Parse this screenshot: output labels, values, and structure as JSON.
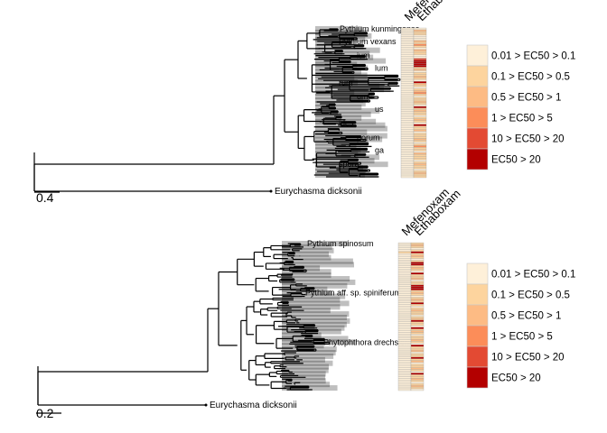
{
  "chart_data": [
    {
      "type": "heatmap",
      "description_free": true,
      "panel": "top",
      "columns": [
        "Mefenoxam",
        "Ethaboxam"
      ],
      "scale_bar_label": "0.4",
      "outgroup_label": "Eurychasma dicksonii",
      "top_tip_label": "Pythium kunmingense",
      "side_labels": [
        "Pythium vexans",
        "ium",
        "lum",
        "rum",
        "um",
        "us",
        "ides",
        "porum",
        "ga",
        "spora"
      ],
      "tip_count": 84,
      "legend": {
        "labels": [
          "0.01 > EC50 > 0.1",
          "0.1 > EC50 > 0.5",
          "0.5 > EC50 > 1",
          "1 > EC50 > 5",
          "10 > EC50 > 20",
          "EC50 > 20"
        ],
        "colors": [
          "#FEF0D9",
          "#FDD49E",
          "#FDBB84",
          "#FC8D59",
          "#E34A33",
          "#B30000"
        ]
      },
      "cell_classes": {
        "Mefenoxam": [
          0,
          0,
          0,
          0,
          0,
          0,
          0,
          0,
          0,
          0,
          0,
          0,
          0,
          0,
          0,
          0,
          0,
          0,
          0,
          0,
          0,
          0,
          0,
          0,
          0,
          0,
          0,
          0,
          0,
          0,
          0,
          0,
          0,
          0,
          0,
          0,
          0,
          0,
          0,
          0,
          0,
          0,
          0,
          0,
          0,
          0,
          0,
          0,
          0,
          0,
          0,
          0,
          0,
          0,
          0,
          0,
          0,
          0,
          0,
          0,
          0,
          0,
          0,
          0,
          0,
          0,
          0,
          0,
          0,
          0,
          0,
          0,
          0,
          0,
          0,
          0,
          0,
          0,
          0,
          0,
          0,
          0,
          0,
          0
        ],
        "Ethaboxam": [
          0,
          2,
          1,
          1,
          0,
          0,
          0,
          2,
          1,
          3,
          1,
          0,
          2,
          1,
          1,
          0,
          0,
          4,
          5,
          5,
          5,
          5,
          1,
          2,
          0,
          1,
          1,
          2,
          1,
          0,
          5,
          2,
          1,
          0,
          1,
          2,
          3,
          1,
          0,
          1,
          1,
          2,
          1,
          0,
          5,
          1,
          2,
          1,
          1,
          0,
          1,
          2,
          1,
          0,
          5,
          1,
          1,
          2,
          0,
          1,
          1,
          1,
          2,
          1,
          0,
          1,
          3,
          1,
          1,
          0,
          2,
          1,
          1,
          1,
          0,
          1,
          2,
          1,
          1,
          0,
          1,
          2,
          1,
          1
        ]
      }
    },
    {
      "type": "heatmap",
      "panel": "bottom",
      "columns": [
        "Mefenoxam",
        "Ethaboxam"
      ],
      "scale_bar_label": "0.2",
      "outgroup_label": "Eurychasma dicksonii",
      "top_tip_label": "Pythium spinosum",
      "side_labels": [
        "Pythium aff. sp. spiniferum",
        "Phytophthora drechsleri"
      ],
      "tip_count": 84,
      "legend": {
        "labels": [
          "0.01 > EC50 > 0.1",
          "0.1 > EC50 > 0.5",
          "0.5 > EC50 > 1",
          "1 > EC50 > 5",
          "10 > EC50 > 20",
          "EC50 > 20"
        ],
        "colors": [
          "#FEF0D9",
          "#FDD49E",
          "#FDBB84",
          "#FC8D59",
          "#E34A33",
          "#B30000"
        ]
      },
      "cell_classes": {
        "Mefenoxam": [
          0,
          0,
          0,
          0,
          0,
          1,
          0,
          0,
          0,
          0,
          0,
          0,
          0,
          0,
          0,
          0,
          0,
          0,
          0,
          0,
          0,
          0,
          0,
          0,
          0,
          0,
          0,
          0,
          0,
          0,
          0,
          0,
          0,
          0,
          0,
          0,
          0,
          0,
          0,
          0,
          0,
          0,
          0,
          0,
          0,
          0,
          0,
          0,
          0,
          0,
          0,
          0,
          0,
          0,
          0,
          0,
          0,
          0,
          0,
          0,
          0,
          0,
          0,
          0,
          0,
          0,
          0,
          0,
          0,
          0,
          0,
          0,
          0,
          0,
          0,
          0,
          0,
          0,
          0,
          0,
          0,
          0,
          0,
          0
        ],
        "Ethaboxam": [
          1,
          2,
          1,
          0,
          1,
          5,
          1,
          2,
          1,
          0,
          1,
          5,
          5,
          1,
          2,
          1,
          0,
          5,
          1,
          1,
          2,
          0,
          1,
          1,
          5,
          5,
          5,
          1,
          2,
          1,
          0,
          1,
          2,
          1,
          5,
          1,
          0,
          1,
          2,
          1,
          1,
          0,
          1,
          2,
          5,
          1,
          1,
          0,
          5,
          1,
          2,
          1,
          0,
          1,
          1,
          2,
          1,
          0,
          5,
          1,
          1,
          2,
          0,
          1,
          1,
          5,
          1,
          2,
          0,
          1,
          1,
          2,
          1,
          0,
          5,
          1,
          1,
          2,
          1,
          0,
          1,
          2,
          1,
          0
        ]
      }
    }
  ]
}
